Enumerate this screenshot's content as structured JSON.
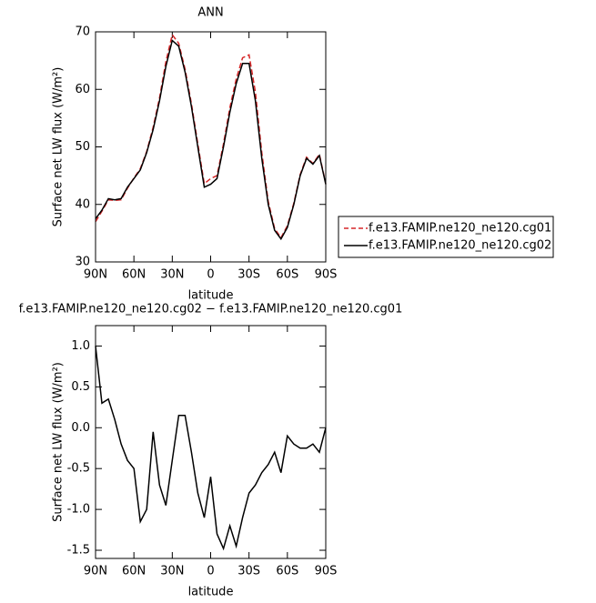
{
  "chart_data": [
    {
      "type": "line",
      "title": "ANN",
      "xlabel": "latitude",
      "ylabel": "Surface net LW flux (W/m²)",
      "x": [
        90,
        85,
        80,
        75,
        70,
        65,
        60,
        55,
        50,
        45,
        40,
        35,
        30,
        25,
        20,
        15,
        10,
        5,
        0,
        -5,
        -10,
        -15,
        -20,
        -25,
        -30,
        -35,
        -40,
        -45,
        -50,
        -55,
        -60,
        -65,
        -70,
        -75,
        -80,
        -85,
        -90
      ],
      "series": [
        {
          "name": "f.e13.FAMIP.ne120_ne120.cg01",
          "color": "#d62728",
          "dash": true,
          "values": [
            37,
            38.8,
            40.8,
            40.7,
            40.8,
            42.8,
            44.6,
            46.2,
            49.2,
            53.4,
            58.5,
            64.8,
            69.5,
            68,
            63.5,
            57.5,
            50.5,
            43.6,
            44.5,
            45,
            50.5,
            56.8,
            61.8,
            65.5,
            66,
            59.5,
            49,
            40.5,
            35.8,
            34.2,
            36.3,
            40.2,
            45.2,
            48.2,
            47.1,
            48.7,
            43.6
          ]
        },
        {
          "name": "f.e13.FAMIP.ne120_ne120.cg02",
          "color": "#000000",
          "dash": false,
          "values": [
            37.5,
            39,
            41,
            40.8,
            41,
            43,
            44.5,
            46,
            49,
            53,
            58,
            64,
            68.5,
            67.5,
            63,
            57,
            50,
            43,
            43.5,
            44.5,
            50,
            56,
            61,
            64.5,
            64.5,
            58,
            48,
            40,
            35.5,
            34,
            36,
            40,
            45,
            48,
            47,
            48.5,
            43.5
          ]
        }
      ],
      "xlim": [
        90,
        -90
      ],
      "xticks": [
        {
          "value": 90,
          "label": "90N"
        },
        {
          "value": 60,
          "label": "60N"
        },
        {
          "value": 30,
          "label": "30N"
        },
        0,
        {
          "value": -30,
          "label": "30S"
        },
        {
          "value": -60,
          "label": "60S"
        },
        {
          "value": -90,
          "label": "90S"
        }
      ],
      "ylim": [
        30,
        70
      ],
      "yticks": [
        30,
        40,
        50,
        60,
        70
      ]
    },
    {
      "type": "line",
      "title": "f.e13.FAMIP.ne120_ne120.cg02 − f.e13.FAMIP.ne120_ne120.cg01",
      "xlabel": "latitude",
      "ylabel": "Surface net LW flux (W/m²)",
      "x": [
        90,
        85,
        80,
        75,
        70,
        65,
        60,
        55,
        50,
        45,
        40,
        35,
        30,
        25,
        20,
        15,
        10,
        5,
        0,
        -5,
        -10,
        -15,
        -20,
        -25,
        -30,
        -35,
        -40,
        -45,
        -50,
        -55,
        -60,
        -65,
        -70,
        -75,
        -80,
        -85,
        -90
      ],
      "values": [
        1.0,
        0.3,
        0.35,
        0.1,
        -0.2,
        -0.4,
        -0.5,
        -1.15,
        -1.0,
        -0.05,
        -0.7,
        -0.95,
        -0.4,
        0.15,
        0.15,
        -0.3,
        -0.8,
        -1.1,
        -0.6,
        -1.3,
        -1.48,
        -1.2,
        -1.45,
        -1.1,
        -0.8,
        -0.7,
        -0.55,
        -0.45,
        -0.3,
        -0.55,
        -0.1,
        -0.2,
        -0.25,
        -0.25,
        -0.2,
        -0.3,
        0.0
      ],
      "color": "#000000",
      "xlim": [
        90,
        -90
      ],
      "xticks": [
        {
          "value": 90,
          "label": "90N"
        },
        {
          "value": 60,
          "label": "60N"
        },
        {
          "value": 30,
          "label": "30N"
        },
        0,
        {
          "value": -30,
          "label": "30S"
        },
        {
          "value": -60,
          "label": "60S"
        },
        {
          "value": -90,
          "label": "90S"
        }
      ],
      "ylim": [
        -1.6,
        1.25
      ],
      "yticks": [
        {
          "value": 1,
          "label": "1.0"
        },
        0.5,
        {
          "value": 0,
          "label": "0.0"
        },
        -0.5,
        {
          "value": -1,
          "label": "-1.0"
        },
        -1.5
      ]
    }
  ]
}
